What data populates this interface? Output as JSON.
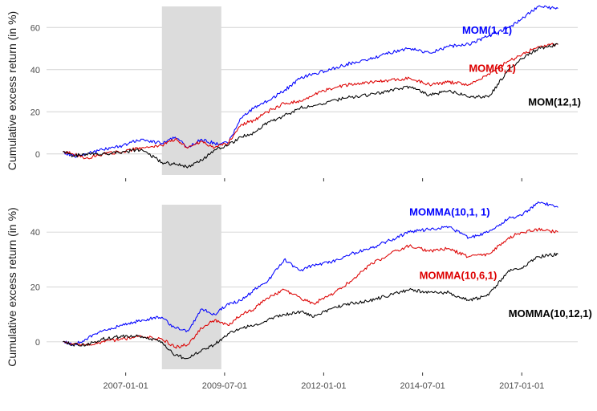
{
  "chart_data": [
    {
      "type": "line",
      "panel": "top",
      "ylabel": "Cumulative excess return (in %)",
      "xlabel": "",
      "xlim": [
        "2005-01-01",
        "2018-06-01"
      ],
      "ylim": [
        -10,
        70
      ],
      "yticks": [
        0,
        20,
        40,
        60
      ],
      "show_x_tick_labels": false,
      "recession_shading": {
        "start": "2007-12-01",
        "end": "2009-06-01",
        "color": "#dcdcdc"
      },
      "grid": true,
      "series": [
        {
          "name": "MOM(1, 1)",
          "color": "#0000ff",
          "points": [
            [
              "2005-06-01",
              1
            ],
            [
              "2005-09-01",
              -1
            ],
            [
              "2006-01-01",
              0
            ],
            [
              "2006-06-01",
              2
            ],
            [
              "2006-12-01",
              4
            ],
            [
              "2007-06-01",
              7
            ],
            [
              "2007-12-01",
              5
            ],
            [
              "2008-04-01",
              8
            ],
            [
              "2008-08-01",
              3
            ],
            [
              "2008-12-01",
              7
            ],
            [
              "2009-04-01",
              5
            ],
            [
              "2009-08-01",
              5
            ],
            [
              "2009-12-01",
              17
            ],
            [
              "2010-04-01",
              22
            ],
            [
              "2010-08-01",
              25
            ],
            [
              "2011-01-01",
              30
            ],
            [
              "2011-06-01",
              36
            ],
            [
              "2011-10-01",
              38
            ],
            [
              "2012-03-01",
              40
            ],
            [
              "2012-09-01",
              43
            ],
            [
              "2013-03-01",
              45
            ],
            [
              "2013-09-01",
              48
            ],
            [
              "2014-03-01",
              50
            ],
            [
              "2014-09-01",
              48
            ],
            [
              "2015-03-01",
              51
            ],
            [
              "2015-09-01",
              52
            ],
            [
              "2016-03-01",
              56
            ],
            [
              "2016-09-01",
              60
            ],
            [
              "2017-01-01",
              64
            ],
            [
              "2017-06-01",
              70
            ],
            [
              "2017-12-01",
              69
            ]
          ]
        },
        {
          "name": "MOM(6,1)",
          "color": "#dd0000",
          "points": [
            [
              "2005-06-01",
              1
            ],
            [
              "2005-09-01",
              0
            ],
            [
              "2006-01-01",
              -2
            ],
            [
              "2006-06-01",
              0
            ],
            [
              "2006-12-01",
              1
            ],
            [
              "2007-06-01",
              3
            ],
            [
              "2007-12-01",
              4
            ],
            [
              "2008-04-01",
              7
            ],
            [
              "2008-08-01",
              3
            ],
            [
              "2008-12-01",
              6
            ],
            [
              "2009-04-01",
              3
            ],
            [
              "2009-08-01",
              5
            ],
            [
              "2009-12-01",
              14
            ],
            [
              "2010-04-01",
              16
            ],
            [
              "2010-08-01",
              20
            ],
            [
              "2011-01-01",
              24
            ],
            [
              "2011-06-01",
              25
            ],
            [
              "2011-10-01",
              28
            ],
            [
              "2012-03-01",
              31
            ],
            [
              "2012-09-01",
              33
            ],
            [
              "2013-03-01",
              34
            ],
            [
              "2013-09-01",
              35
            ],
            [
              "2014-03-01",
              36
            ],
            [
              "2014-09-01",
              33
            ],
            [
              "2015-03-01",
              34
            ],
            [
              "2015-09-01",
              33
            ],
            [
              "2016-03-01",
              38
            ],
            [
              "2016-09-01",
              44
            ],
            [
              "2017-01-01",
              47
            ],
            [
              "2017-06-01",
              51
            ],
            [
              "2017-12-01",
              52
            ]
          ]
        },
        {
          "name": "MOM(12,1)",
          "color": "#000000",
          "points": [
            [
              "2005-06-01",
              1
            ],
            [
              "2005-09-01",
              -1
            ],
            [
              "2006-01-01",
              0
            ],
            [
              "2006-06-01",
              0
            ],
            [
              "2006-12-01",
              1
            ],
            [
              "2007-06-01",
              2
            ],
            [
              "2007-12-01",
              -4
            ],
            [
              "2008-04-01",
              -5
            ],
            [
              "2008-08-01",
              -6
            ],
            [
              "2008-12-01",
              -3
            ],
            [
              "2009-04-01",
              2
            ],
            [
              "2009-08-01",
              4
            ],
            [
              "2009-12-01",
              8
            ],
            [
              "2010-04-01",
              10
            ],
            [
              "2010-08-01",
              15
            ],
            [
              "2011-01-01",
              18
            ],
            [
              "2011-06-01",
              22
            ],
            [
              "2011-10-01",
              23
            ],
            [
              "2012-03-01",
              25
            ],
            [
              "2012-09-01",
              27
            ],
            [
              "2013-03-01",
              28
            ],
            [
              "2013-09-01",
              30
            ],
            [
              "2014-03-01",
              32
            ],
            [
              "2014-09-01",
              28
            ],
            [
              "2015-03-01",
              30
            ],
            [
              "2015-09-01",
              27
            ],
            [
              "2016-03-01",
              27
            ],
            [
              "2016-09-01",
              40
            ],
            [
              "2017-01-01",
              45
            ],
            [
              "2017-06-01",
              50
            ],
            [
              "2017-12-01",
              52
            ]
          ]
        }
      ],
      "annotations": [
        {
          "text": "MOM(1, 1)",
          "color": "#0000ff",
          "x": "2015-07-01",
          "y": 57
        },
        {
          "text": "MOM(6,1)",
          "color": "#dd0000",
          "x": "2015-09-01",
          "y": 39
        },
        {
          "text": "MOM(12,1)",
          "color": "#000000",
          "x": "2017-03-01",
          "y": 23
        }
      ]
    },
    {
      "type": "line",
      "panel": "bottom",
      "ylabel": "Cumulative excess return (in %)",
      "xlabel": "",
      "xlim": [
        "2005-01-01",
        "2018-06-01"
      ],
      "ylim": [
        -10,
        50
      ],
      "yticks": [
        0,
        20,
        40
      ],
      "xticks": [
        "2007-01-01",
        "2009-07-01",
        "2012-01-01",
        "2014-07-01",
        "2017-01-01"
      ],
      "show_x_tick_labels": true,
      "recession_shading": {
        "start": "2007-12-01",
        "end": "2009-06-01",
        "color": "#dcdcdc"
      },
      "grid": true,
      "series": [
        {
          "name": "MOMMA(10,1, 1)",
          "color": "#0000ff",
          "points": [
            [
              "2005-06-01",
              0
            ],
            [
              "2005-09-01",
              -1
            ],
            [
              "2006-01-01",
              1
            ],
            [
              "2006-06-01",
              4
            ],
            [
              "2006-12-01",
              6
            ],
            [
              "2007-06-01",
              8
            ],
            [
              "2007-12-01",
              9
            ],
            [
              "2008-04-01",
              5
            ],
            [
              "2008-08-01",
              4
            ],
            [
              "2008-12-01",
              12
            ],
            [
              "2009-04-01",
              10
            ],
            [
              "2009-08-01",
              14
            ],
            [
              "2009-12-01",
              15
            ],
            [
              "2010-04-01",
              19
            ],
            [
              "2010-08-01",
              22
            ],
            [
              "2011-01-01",
              30
            ],
            [
              "2011-06-01",
              26
            ],
            [
              "2011-10-01",
              28
            ],
            [
              "2012-03-01",
              29
            ],
            [
              "2012-09-01",
              32
            ],
            [
              "2013-03-01",
              34
            ],
            [
              "2013-09-01",
              37
            ],
            [
              "2014-03-01",
              40
            ],
            [
              "2014-09-01",
              41
            ],
            [
              "2015-03-01",
              42
            ],
            [
              "2015-09-01",
              38
            ],
            [
              "2016-03-01",
              40
            ],
            [
              "2016-09-01",
              45
            ],
            [
              "2017-01-01",
              46
            ],
            [
              "2017-06-01",
              51
            ],
            [
              "2017-12-01",
              49
            ]
          ]
        },
        {
          "name": "MOMMA(10,6,1)",
          "color": "#dd0000",
          "points": [
            [
              "2005-06-01",
              0
            ],
            [
              "2005-09-01",
              -1
            ],
            [
              "2006-01-01",
              -1
            ],
            [
              "2006-06-01",
              0
            ],
            [
              "2006-12-01",
              1
            ],
            [
              "2007-06-01",
              2
            ],
            [
              "2007-12-01",
              1
            ],
            [
              "2008-04-01",
              -2
            ],
            [
              "2008-08-01",
              -1
            ],
            [
              "2008-12-01",
              5
            ],
            [
              "2009-04-01",
              8
            ],
            [
              "2009-08-01",
              6
            ],
            [
              "2009-12-01",
              10
            ],
            [
              "2010-04-01",
              12
            ],
            [
              "2010-08-01",
              16
            ],
            [
              "2011-01-01",
              19
            ],
            [
              "2011-06-01",
              16
            ],
            [
              "2011-10-01",
              14
            ],
            [
              "2012-03-01",
              17
            ],
            [
              "2012-09-01",
              22
            ],
            [
              "2013-03-01",
              28
            ],
            [
              "2013-09-01",
              32
            ],
            [
              "2014-03-01",
              35
            ],
            [
              "2014-09-01",
              33
            ],
            [
              "2015-03-01",
              34
            ],
            [
              "2015-09-01",
              31
            ],
            [
              "2016-03-01",
              32
            ],
            [
              "2016-09-01",
              38
            ],
            [
              "2017-01-01",
              40
            ],
            [
              "2017-06-01",
              41
            ],
            [
              "2017-12-01",
              40
            ]
          ]
        },
        {
          "name": "MOMMA(10,12,1)",
          "color": "#000000",
          "points": [
            [
              "2005-06-01",
              0
            ],
            [
              "2005-09-01",
              -1
            ],
            [
              "2006-01-01",
              -1
            ],
            [
              "2006-06-01",
              1
            ],
            [
              "2006-12-01",
              2
            ],
            [
              "2007-06-01",
              2
            ],
            [
              "2007-12-01",
              0
            ],
            [
              "2008-04-01",
              -5
            ],
            [
              "2008-08-01",
              -6
            ],
            [
              "2008-12-01",
              -3
            ],
            [
              "2009-04-01",
              -1
            ],
            [
              "2009-08-01",
              3
            ],
            [
              "2009-12-01",
              5
            ],
            [
              "2010-04-01",
              6
            ],
            [
              "2010-08-01",
              8
            ],
            [
              "2011-01-01",
              10
            ],
            [
              "2011-06-01",
              11
            ],
            [
              "2011-10-01",
              9
            ],
            [
              "2012-03-01",
              12
            ],
            [
              "2012-09-01",
              14
            ],
            [
              "2013-03-01",
              15
            ],
            [
              "2013-09-01",
              17
            ],
            [
              "2014-03-01",
              19
            ],
            [
              "2014-09-01",
              18
            ],
            [
              "2015-03-01",
              18
            ],
            [
              "2015-09-01",
              15
            ],
            [
              "2016-03-01",
              17
            ],
            [
              "2016-09-01",
              26
            ],
            [
              "2017-01-01",
              27
            ],
            [
              "2017-06-01",
              31
            ],
            [
              "2017-12-01",
              32
            ]
          ]
        }
      ],
      "annotations": [
        {
          "text": "MOMMA(10,1, 1)",
          "color": "#0000ff",
          "x": "2014-03-01",
          "y": 46
        },
        {
          "text": "MOMMA(10,6,1)",
          "color": "#dd0000",
          "x": "2014-06-01",
          "y": 23
        },
        {
          "text": "MOMMA(10,12,1)",
          "color": "#000000",
          "x": "2016-09-01",
          "y": 9
        }
      ]
    }
  ]
}
